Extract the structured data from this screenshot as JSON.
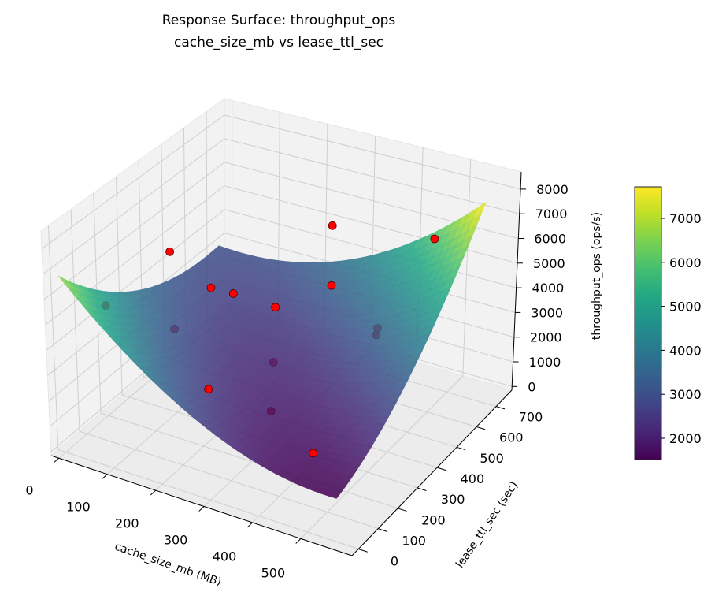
{
  "chart_data": {
    "type": "surface3d",
    "title": "Response Surface: throughput_ops",
    "subtitle": "cache_size_mb vs lease_ttl_sec",
    "xlabel": "cache_size_mb (MB)",
    "ylabel": "lease_ttl_sec (sec)",
    "zlabel": "throughput_ops (ops/s)",
    "xlim": [
      -16,
      606
    ],
    "ylim": [
      -33,
      780
    ],
    "zlim": [
      -150,
      8700
    ],
    "xticks": [
      0,
      100,
      200,
      300,
      400,
      500
    ],
    "yticks": [
      0,
      100,
      200,
      300,
      400,
      500,
      600,
      700
    ],
    "zticks": [
      0,
      1000,
      2000,
      3000,
      4000,
      5000,
      6000,
      7000,
      8000
    ],
    "colormap": "viridis",
    "grid": true,
    "surface": {
      "x_range": [
        0,
        560
      ],
      "y_range": [
        0,
        720
      ],
      "model": "z = 6800 - 11000u - 8300v + 5700u^2 + 4500v^2 + 10000uv, u = x/560, v = y/720"
    },
    "points": [
      {
        "x": 12,
        "y": 177,
        "z": 4500
      },
      {
        "x": 102,
        "y": 275,
        "z": 6500
      },
      {
        "x": 152,
        "y": 350,
        "z": 4800
      },
      {
        "x": 183,
        "y": 384,
        "z": 4500
      },
      {
        "x": 326,
        "y": 525,
        "z": 7000
      },
      {
        "x": 270,
        "y": 66,
        "z": 3500
      },
      {
        "x": 66,
        "y": 369,
        "z": 2500
      },
      {
        "x": 206,
        "y": 530,
        "z": 3000
      },
      {
        "x": 309,
        "y": 563,
        "z": 4200
      },
      {
        "x": 257,
        "y": 405,
        "z": 2000
      },
      {
        "x": 329,
        "y": 228,
        "z": 1800
      },
      {
        "x": 468,
        "y": 105,
        "z": 1900
      },
      {
        "x": 428,
        "y": 513,
        "z": 3500
      },
      {
        "x": 429,
        "y": 505,
        "z": 3300
      },
      {
        "x": 482,
        "y": 657,
        "z": 6300
      }
    ],
    "point_color": "#ff0000",
    "colorbar": {
      "range": [
        1516,
        7717
      ],
      "ticks": [
        2000,
        3000,
        4000,
        5000,
        6000,
        7000
      ]
    }
  }
}
